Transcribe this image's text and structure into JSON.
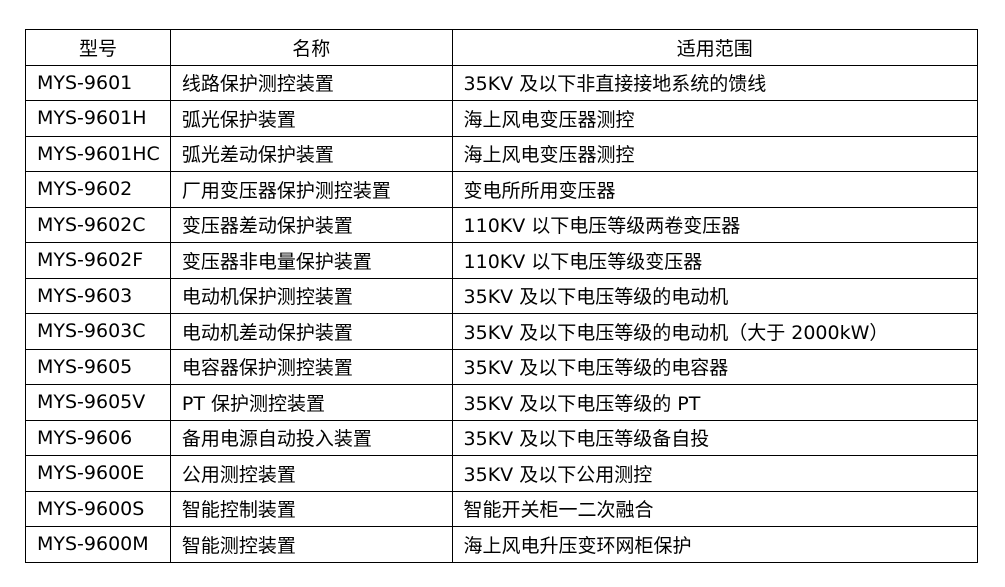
{
  "headers": [
    "型号",
    "名称",
    "适用范围"
  ],
  "rows": [
    [
      "MYS-9601",
      "线路保护测控装置",
      "35KV 及以下非直接接地系统的馈线"
    ],
    [
      "MYS-9601H",
      "弧光保护装置",
      "海上风电变压器测控"
    ],
    [
      "MYS-9601HC",
      "弧光差动保护装置",
      "海上风电变压器测控"
    ],
    [
      "MYS-9602",
      "厂用变压器保护测控装置",
      "变电所所用变压器"
    ],
    [
      "MYS-9602C",
      "变压器差动保护装置",
      "110KV 以下电压等级两卷变压器"
    ],
    [
      "MYS-9602F",
      "变压器非电量保护装置",
      "110KV 以下电压等级变压器"
    ],
    [
      "MYS-9603",
      "电动机保护测控装置",
      "35KV 及以下电压等级的电动机"
    ],
    [
      "MYS-9603C",
      "电动机差动保护装置",
      "35KV 及以下电压等级的电动机（大于 2000kW）"
    ],
    [
      "MYS-9605",
      "电容器保护测控装置",
      "35KV 及以下电压等级的电容器"
    ],
    [
      "MYS-9605V",
      "PT 保护测控装置",
      "35KV 及以下电压等级的 PT"
    ],
    [
      "MYS-9606",
      "备用电源自动投入装置",
      "35KV 及以下电压等级备自投"
    ],
    [
      "MYS-9600E",
      "公用测控装置",
      "35KV 及以下公用测控"
    ],
    [
      "MYS-9600S",
      "智能控制装置",
      "智能开关柜一二次融合"
    ],
    [
      "MYS-9600M",
      "智能测控装置",
      "海上风电升压变环网柜保护"
    ]
  ]
}
